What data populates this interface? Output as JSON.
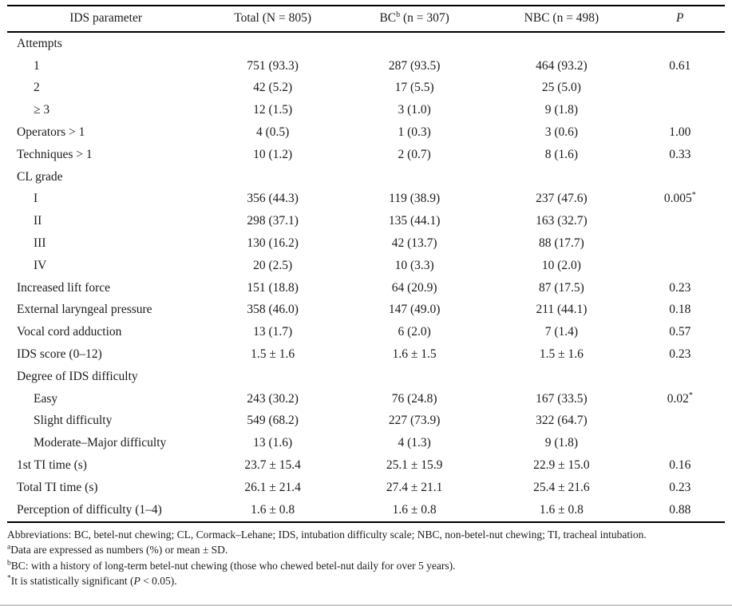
{
  "page": {
    "background": "#ffffff",
    "text_color": "#1b1b1b",
    "rule_color": "#000000",
    "bottom_edge_color": "#c9c9c9"
  },
  "table": {
    "header": {
      "param": "IDS parameter",
      "total": "Total (N = 805)",
      "bc_name": "BC",
      "bc_sup": "b",
      "bc_rest": " (n = 307)",
      "nbc": "NBC (n = 498)",
      "p": "P"
    },
    "rows": [
      {
        "label": "Attempts",
        "indent": false,
        "total": "",
        "bc": "",
        "nbc": "",
        "p": "",
        "p_sup": ""
      },
      {
        "label": "1",
        "indent": true,
        "total": "751 (93.3)",
        "bc": "287 (93.5)",
        "nbc": "464 (93.2)",
        "p": "0.61",
        "p_sup": ""
      },
      {
        "label": "2",
        "indent": true,
        "total": "42 (5.2)",
        "bc": "17 (5.5)",
        "nbc": "25 (5.0)",
        "p": "",
        "p_sup": ""
      },
      {
        "label": "≥ 3",
        "indent": true,
        "total": "12 (1.5)",
        "bc": "3 (1.0)",
        "nbc": "9 (1.8)",
        "p": "",
        "p_sup": ""
      },
      {
        "label": "Operators > 1",
        "indent": false,
        "total": "4 (0.5)",
        "bc": "1 (0.3)",
        "nbc": "3 (0.6)",
        "p": "1.00",
        "p_sup": ""
      },
      {
        "label": "Techniques > 1",
        "indent": false,
        "total": "10 (1.2)",
        "bc": "2 (0.7)",
        "nbc": "8 (1.6)",
        "p": "0.33",
        "p_sup": ""
      },
      {
        "label": "CL grade",
        "indent": false,
        "total": "",
        "bc": "",
        "nbc": "",
        "p": "",
        "p_sup": ""
      },
      {
        "label": "I",
        "indent": true,
        "total": "356 (44.3)",
        "bc": "119 (38.9)",
        "nbc": "237 (47.6)",
        "p": "0.005",
        "p_sup": "*"
      },
      {
        "label": "II",
        "indent": true,
        "total": "298 (37.1)",
        "bc": "135 (44.1)",
        "nbc": "163 (32.7)",
        "p": "",
        "p_sup": ""
      },
      {
        "label": "III",
        "indent": true,
        "total": "130 (16.2)",
        "bc": "42 (13.7)",
        "nbc": "88 (17.7)",
        "p": "",
        "p_sup": ""
      },
      {
        "label": "IV",
        "indent": true,
        "total": "20 (2.5)",
        "bc": "10 (3.3)",
        "nbc": "10 (2.0)",
        "p": "",
        "p_sup": ""
      },
      {
        "label": "Increased lift force",
        "indent": false,
        "total": "151 (18.8)",
        "bc": "64 (20.9)",
        "nbc": "87 (17.5)",
        "p": "0.23",
        "p_sup": ""
      },
      {
        "label": "External laryngeal pressure",
        "indent": false,
        "total": "358 (46.0)",
        "bc": "147 (49.0)",
        "nbc": "211 (44.1)",
        "p": "0.18",
        "p_sup": ""
      },
      {
        "label": "Vocal cord adduction",
        "indent": false,
        "total": "13 (1.7)",
        "bc": "6 (2.0)",
        "nbc": "7 (1.4)",
        "p": "0.57",
        "p_sup": ""
      },
      {
        "label": "IDS score (0–12)",
        "indent": false,
        "total": "1.5 ± 1.6",
        "bc": "1.6 ± 1.5",
        "nbc": "1.5 ± 1.6",
        "p": "0.23",
        "p_sup": ""
      },
      {
        "label": "Degree of IDS difficulty",
        "indent": false,
        "total": "",
        "bc": "",
        "nbc": "",
        "p": "",
        "p_sup": ""
      },
      {
        "label": "Easy",
        "indent": true,
        "total": "243 (30.2)",
        "bc": "76 (24.8)",
        "nbc": "167 (33.5)",
        "p": "0.02",
        "p_sup": "*"
      },
      {
        "label": "Slight difficulty",
        "indent": true,
        "total": "549 (68.2)",
        "bc": "227 (73.9)",
        "nbc": "322 (64.7)",
        "p": "",
        "p_sup": ""
      },
      {
        "label": "Moderate–Major difficulty",
        "indent": true,
        "total": "13 (1.6)",
        "bc": "4 (1.3)",
        "nbc": "9 (1.8)",
        "p": "",
        "p_sup": ""
      },
      {
        "label": "1st TI time (s)",
        "indent": false,
        "total": "23.7 ± 15.4",
        "bc": "25.1 ± 15.9",
        "nbc": "22.9 ± 15.0",
        "p": "0.16",
        "p_sup": ""
      },
      {
        "label": "Total TI time (s)",
        "indent": false,
        "total": "26.1 ± 21.4",
        "bc": "27.4 ± 21.1",
        "nbc": "25.4 ± 21.6",
        "p": "0.23",
        "p_sup": ""
      },
      {
        "label": "Perception of difficulty (1–4)",
        "indent": false,
        "total": "1.6 ± 0.8",
        "bc": "1.6 ± 0.8",
        "nbc": "1.6 ± 0.8",
        "p": "0.88",
        "p_sup": ""
      }
    ]
  },
  "footnotes": [
    {
      "sup": "",
      "pre": "Abbreviations: BC, betel-nut chewing; CL, Cormack–Lehane; IDS, intubation difficulty scale; NBC, non-betel-nut chewing; TI, tracheal intubation.",
      "italic": "",
      "post": ""
    },
    {
      "sup": "a",
      "pre": "Data are expressed as numbers (%) or mean ± SD.",
      "italic": "",
      "post": ""
    },
    {
      "sup": "b",
      "pre": "BC: with a history of long-term betel-nut chewing (those who chewed betel-nut daily for over 5 years).",
      "italic": "",
      "post": ""
    },
    {
      "sup": "*",
      "pre": "It is statistically significant (",
      "italic": "P",
      "post": " < 0.05)."
    }
  ]
}
